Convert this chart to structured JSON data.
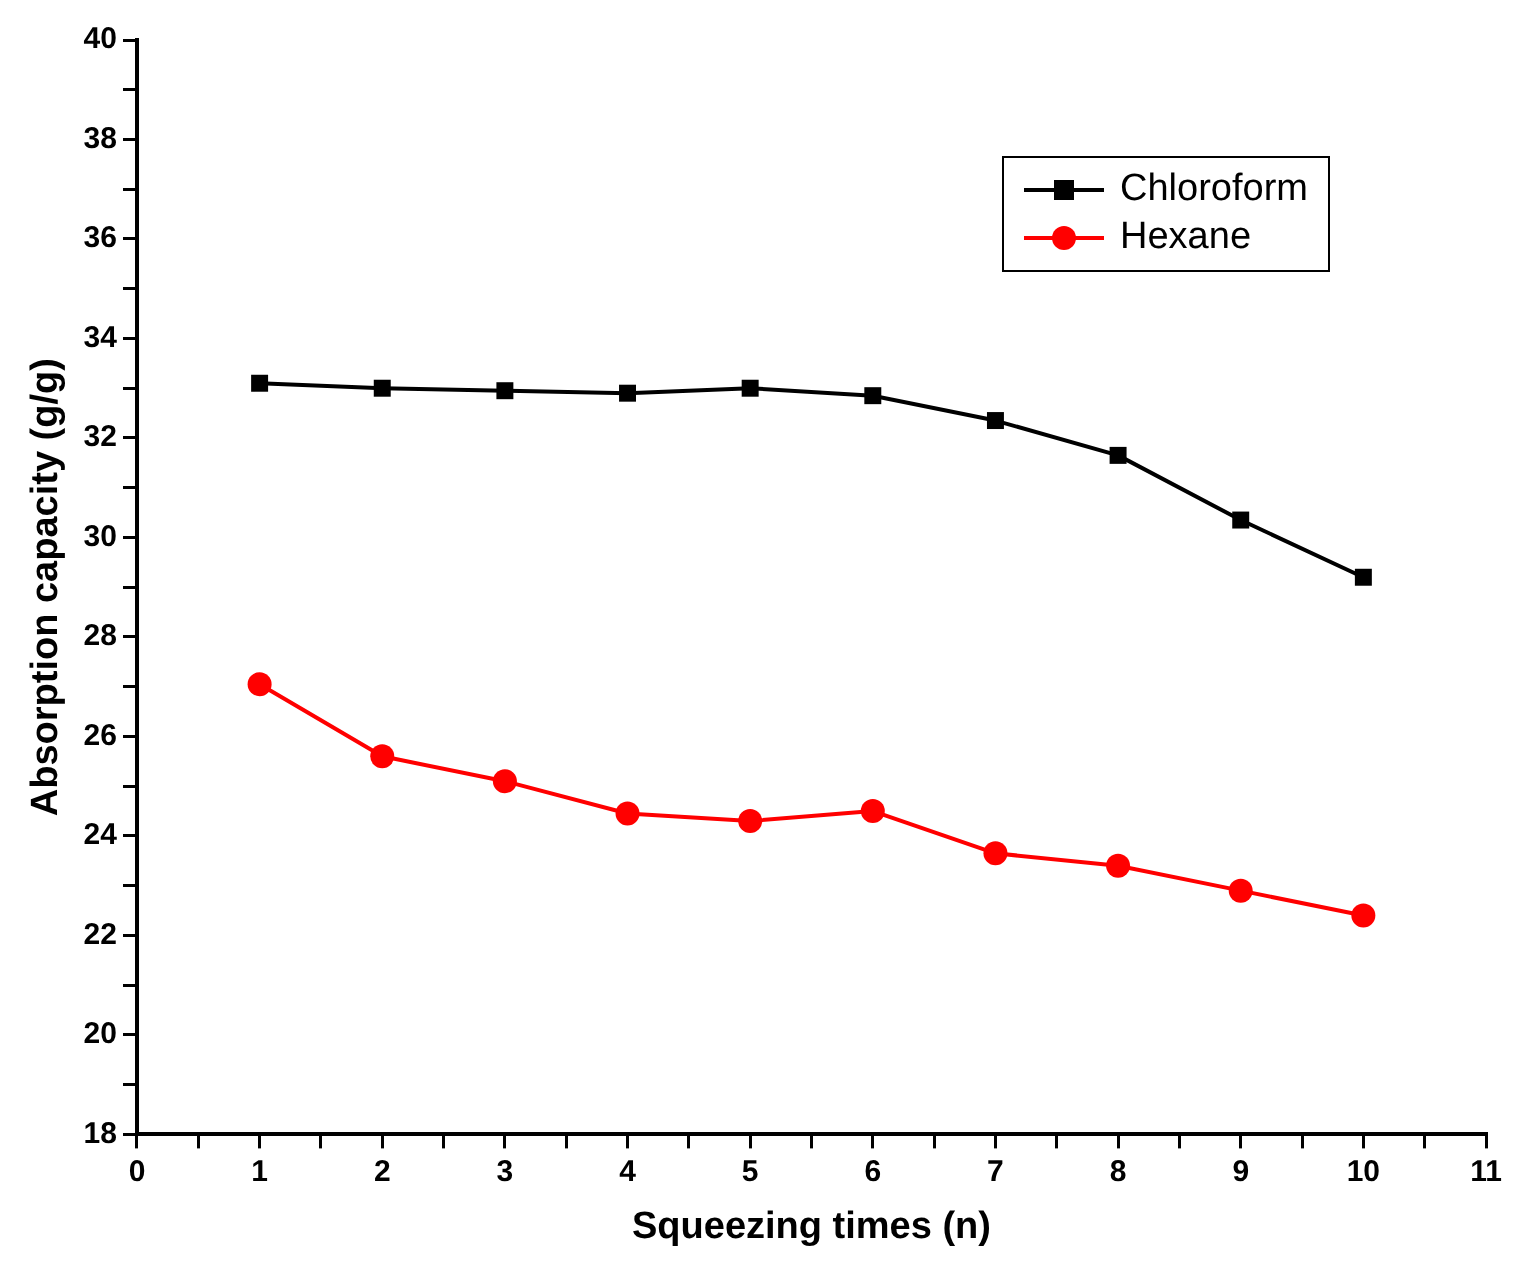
{
  "chart_data": {
    "type": "line",
    "xlabel": "Squeezing times (n)",
    "ylabel": "Absorption capacity (g/g)",
    "x": [
      1,
      2,
      3,
      4,
      5,
      6,
      7,
      8,
      9,
      10
    ],
    "series": [
      {
        "name": "Chloroform",
        "color": "#000000",
        "marker": "square",
        "values": [
          33.1,
          33.0,
          32.95,
          32.9,
          33.0,
          32.85,
          32.35,
          31.65,
          30.35,
          29.2
        ]
      },
      {
        "name": "Hexane",
        "color": "#ff0000",
        "marker": "circle",
        "values": [
          27.05,
          25.6,
          25.1,
          24.45,
          24.3,
          24.5,
          23.65,
          23.4,
          22.9,
          22.4
        ]
      }
    ],
    "xlim": [
      0,
      11
    ],
    "xticks": [
      0,
      {
        "value": 0.5,
        "label": null
      },
      1,
      {
        "value": 1.5,
        "label": null
      },
      2,
      {
        "value": 2.5,
        "label": null
      },
      3,
      {
        "value": 3.5,
        "label": null
      },
      4,
      {
        "value": 4.5,
        "label": null
      },
      5,
      {
        "value": 5.5,
        "label": null
      },
      6,
      {
        "value": 6.5,
        "label": null
      },
      7,
      {
        "value": 7.5,
        "label": null
      },
      8,
      {
        "value": 8.5,
        "label": null
      },
      9,
      {
        "value": 9.5,
        "label": null
      },
      10,
      {
        "value": 10.5,
        "label": null
      },
      11
    ],
    "ylim": [
      18,
      40
    ],
    "yticks": [
      18,
      {
        "value": 19,
        "label": null
      },
      20,
      {
        "value": 21,
        "label": null
      },
      22,
      {
        "value": 23,
        "label": null
      },
      24,
      {
        "value": 25,
        "label": null
      },
      26,
      {
        "value": 27,
        "label": null
      },
      28,
      {
        "value": 29,
        "label": null
      },
      30,
      {
        "value": 31,
        "label": null
      },
      32,
      {
        "value": 33,
        "label": null
      },
      34,
      {
        "value": 35,
        "label": null
      },
      36,
      {
        "value": 37,
        "label": null
      },
      38,
      {
        "value": 39,
        "label": null
      },
      40
    ],
    "grid": false,
    "legend": "top right",
    "line_style": "solid"
  }
}
